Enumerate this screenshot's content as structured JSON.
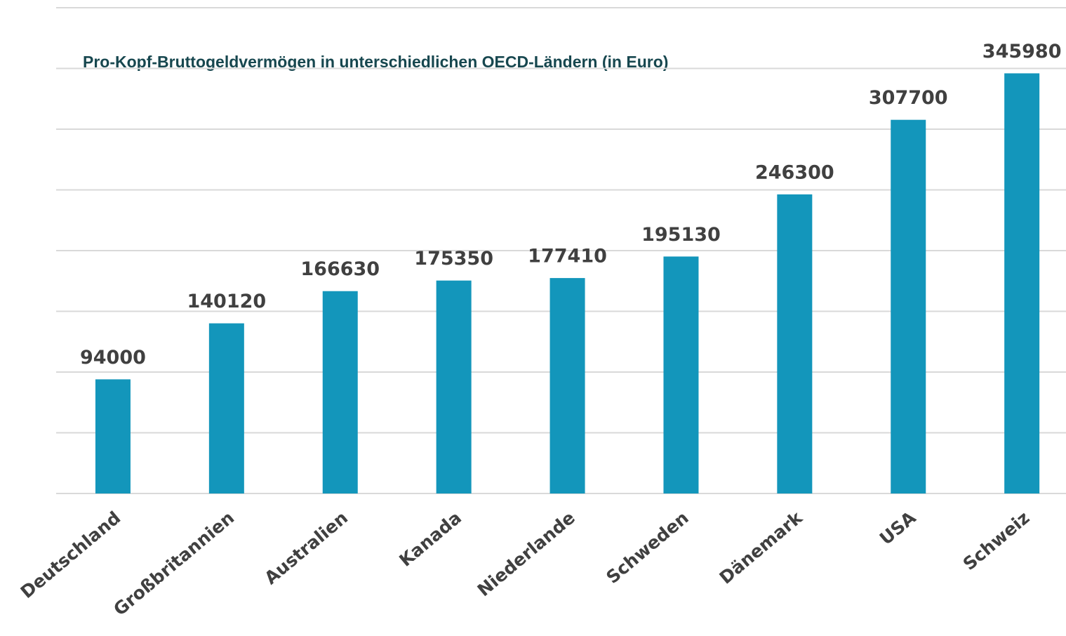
{
  "chart_data": {
    "type": "bar",
    "title": "Pro-Kopf-Bruttogeldvermögen in unterschiedlichen OECD-Ländern (in Euro)",
    "categories": [
      "Deutschland",
      "Großbritannien",
      "Australien",
      "Kanada",
      "Niederlande",
      "Schweden",
      "Dänemark",
      "USA",
      "Schweiz"
    ],
    "values": [
      94000,
      140120,
      166630,
      175350,
      177410,
      195130,
      246300,
      307700,
      345980
    ],
    "color": "#1396bb",
    "ylim": [
      0,
      400000
    ],
    "yticks": [
      0,
      50000,
      100000,
      150000,
      200000,
      250000,
      300000,
      350000,
      400000
    ],
    "grid": true
  }
}
